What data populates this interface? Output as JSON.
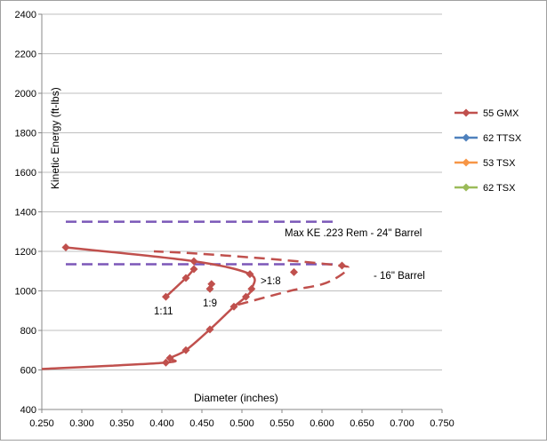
{
  "chart_data": {
    "type": "scatter",
    "xlabel": "Diameter (inches)",
    "ylabel": "Kinetic Energy (ft-lbs)",
    "xlim": [
      0.25,
      0.75
    ],
    "ylim": [
      400,
      2400
    ],
    "x_ticks": [
      "0.250",
      "0.300",
      "0.350",
      "0.400",
      "0.450",
      "0.500",
      "0.550",
      "0.600",
      "0.650",
      "0.700",
      "0.750"
    ],
    "y_ticks": [
      "400",
      "600",
      "800",
      "1000",
      "1200",
      "1400",
      "1600",
      "1800",
      "2000",
      "2200",
      "2400"
    ],
    "grid": "horizontal",
    "legend_position": "right",
    "series": [
      {
        "name": "55 GMX",
        "color": "#c0504d",
        "marker": "diamond",
        "points": [
          [
            0.25,
            605
          ],
          [
            0.405,
            637
          ],
          [
            0.41,
            660
          ],
          [
            0.43,
            700
          ],
          [
            0.46,
            805
          ],
          [
            0.49,
            920
          ],
          [
            0.505,
            970
          ],
          [
            0.512,
            1010
          ],
          [
            0.51,
            1085
          ],
          [
            0.44,
            1150
          ],
          [
            0.28,
            1220
          ]
        ]
      },
      {
        "name": "62 TTSX",
        "color": "#4f81bd",
        "marker": "diamond",
        "points": []
      },
      {
        "name": "53 TSX",
        "color": "#f79646",
        "marker": "diamond",
        "points": []
      },
      {
        "name": "62 TSX",
        "color": "#9bbb59",
        "marker": "diamond",
        "points": []
      }
    ],
    "dashed_curve": {
      "color": "#c0504d",
      "points": [
        [
          0.495,
          930
        ],
        [
          0.56,
          1000
        ],
        [
          0.605,
          1040
        ],
        [
          0.632,
          1110
        ],
        [
          0.618,
          1130
        ],
        [
          0.54,
          1160
        ],
        [
          0.44,
          1190
        ],
        [
          0.39,
          1200
        ]
      ]
    },
    "markers_extra": [
      [
        0.565,
        1095
      ],
      [
        0.625,
        1128
      ]
    ],
    "twist_markers": [
      [
        0.405,
        970
      ],
      [
        0.43,
        1065
      ],
      [
        0.44,
        1110
      ],
      [
        0.46,
        1010
      ],
      [
        0.462,
        1035
      ]
    ],
    "reference_lines": [
      {
        "y": 1350,
        "x_range": [
          0.28,
          0.62
        ],
        "color": "#7b57b8",
        "label": "Max KE .223 Rem - 24\" Barrel"
      },
      {
        "y": 1135,
        "x_range": [
          0.28,
          0.62
        ],
        "color": "#7b57b8",
        "label": "- 16\" Barrel"
      }
    ],
    "annotations": [
      "1:11",
      "1:9",
      ">1:8"
    ]
  }
}
